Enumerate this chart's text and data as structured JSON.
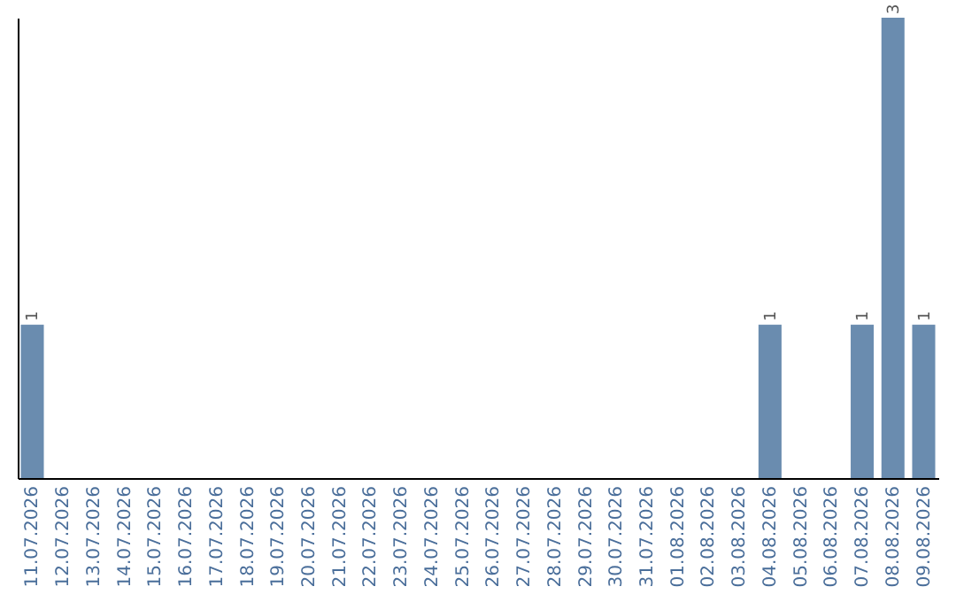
{
  "chart_data": {
    "type": "bar",
    "categories": [
      "11.07.2026",
      "12.07.2026",
      "13.07.2026",
      "14.07.2026",
      "15.07.2026",
      "16.07.2026",
      "17.07.2026",
      "18.07.2026",
      "19.07.2026",
      "20.07.2026",
      "21.07.2026",
      "22.07.2026",
      "23.07.2026",
      "24.07.2026",
      "25.07.2026",
      "26.07.2026",
      "27.07.2026",
      "28.07.2026",
      "29.07.2026",
      "30.07.2026",
      "31.07.2026",
      "01.08.2026",
      "02.08.2026",
      "03.08.2026",
      "04.08.2026",
      "05.08.2026",
      "06.08.2026",
      "07.08.2026",
      "08.08.2026",
      "09.08.2026"
    ],
    "values": [
      1,
      0,
      0,
      0,
      0,
      0,
      0,
      0,
      0,
      0,
      0,
      0,
      0,
      0,
      0,
      0,
      0,
      0,
      0,
      0,
      0,
      0,
      0,
      0,
      1,
      0,
      0,
      1,
      3,
      1
    ],
    "value_labels": [
      "1",
      null,
      null,
      null,
      null,
      null,
      null,
      null,
      null,
      null,
      null,
      null,
      null,
      null,
      null,
      null,
      null,
      null,
      null,
      null,
      null,
      null,
      null,
      null,
      "1",
      null,
      null,
      "1",
      "3",
      "1"
    ],
    "color": "#6a8caf",
    "tick_labels": "x"
  }
}
